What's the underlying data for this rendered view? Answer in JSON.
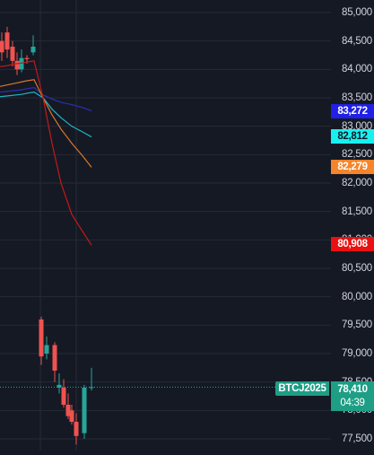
{
  "price_axis": {
    "ticks": [
      "85,000",
      "84,500",
      "84,000",
      "83,500",
      "83,000",
      "82,500",
      "82,000",
      "81,500",
      "81,000",
      "80,500",
      "80,000",
      "79,500",
      "79,000",
      "78,500",
      "78,000",
      "77,500"
    ]
  },
  "indicator_tags": [
    {
      "name": "ma-tag-blue",
      "value": "83,272",
      "bg": "#2020e6",
      "text_color": "#ffffff"
    },
    {
      "name": "ma-tag-cyan",
      "value": "82,812",
      "bg": "#18f0f0",
      "text_color": "#131722"
    },
    {
      "name": "ma-tag-orange",
      "value": "82,279",
      "bg": "#f5842a",
      "text_color": "#ffffff"
    },
    {
      "name": "ma-tag-red",
      "value": "80,908",
      "bg": "#e81010",
      "text_color": "#ffffff"
    }
  ],
  "symbol": {
    "label": "BTCJ2025",
    "color": "#1d9e85"
  },
  "last_price": {
    "value": "78,410",
    "countdown": "04:39",
    "color": "#1d9e85"
  },
  "colors": {
    "background": "#151924",
    "grid": "#252a36",
    "bull": "#26a69a",
    "bear": "#ef5350",
    "ma_blue": "#2e2eb0",
    "ma_cyan": "#1fb6c2",
    "ma_orange": "#d9772b",
    "ma_red": "#c21a1a"
  },
  "chart_data": {
    "type": "candlestick",
    "ylim": [
      77300,
      85100
    ],
    "yticks": [
      85000,
      84500,
      84000,
      83500,
      83000,
      82500,
      82000,
      81500,
      81000,
      80500,
      80000,
      79500,
      79000,
      78500,
      78000,
      77500
    ],
    "candles": [
      {
        "o": 84500,
        "h": 84650,
        "l": 84150,
        "c": 84300
      },
      {
        "o": 84650,
        "h": 84750,
        "l": 84200,
        "c": 84350
      },
      {
        "o": 84400,
        "h": 84500,
        "l": 84050,
        "c": 84150
      },
      {
        "o": 84150,
        "h": 84300,
        "l": 83900,
        "c": 84000
      },
      {
        "o": 84000,
        "h": 84350,
        "l": 83950,
        "c": 84200
      },
      {
        "o": 84200,
        "h": 84250,
        "l": 84100,
        "c": 84180
      },
      {
        "o": 84300,
        "h": 84600,
        "l": 84250,
        "c": 84400
      },
      {
        "o": 79600,
        "h": 79650,
        "l": 78800,
        "c": 78950
      },
      {
        "o": 79000,
        "h": 79300,
        "l": 78900,
        "c": 79150
      },
      {
        "o": 79150,
        "h": 79200,
        "l": 78500,
        "c": 78700
      },
      {
        "o": 78400,
        "h": 78650,
        "l": 78300,
        "c": 78450
      },
      {
        "o": 78400,
        "h": 78550,
        "l": 78050,
        "c": 78100
      },
      {
        "o": 78100,
        "h": 78300,
        "l": 77850,
        "c": 77900
      },
      {
        "o": 78000,
        "h": 78100,
        "l": 77750,
        "c": 77800
      },
      {
        "o": 77800,
        "h": 77950,
        "l": 77400,
        "c": 77550
      },
      {
        "o": 77600,
        "h": 78450,
        "l": 77500,
        "c": 78400
      },
      {
        "o": 78410,
        "h": 78750,
        "l": 78350,
        "c": 78410
      }
    ],
    "ma_lines": [
      {
        "name": "ma-blue",
        "color": "#2e2eb0",
        "values": [
          83600,
          83610,
          83620,
          83630,
          83640,
          83660,
          83680,
          83550,
          83480,
          83420,
          83380,
          83330,
          83272
        ]
      },
      {
        "name": "ma-cyan",
        "color": "#1fb6c2",
        "values": [
          83520,
          83530,
          83540,
          83550,
          83560,
          83580,
          83600,
          83500,
          83300,
          83150,
          83000,
          82900,
          82812
        ]
      },
      {
        "name": "ma-orange",
        "color": "#d9772b",
        "values": [
          83700,
          83720,
          83740,
          83760,
          83780,
          83800,
          83820,
          83500,
          83200,
          82950,
          82700,
          82480,
          82279
        ]
      },
      {
        "name": "ma-red",
        "color": "#c21a1a",
        "values": [
          84050,
          84060,
          84080,
          84100,
          84110,
          84130,
          84150,
          83500,
          82700,
          82000,
          81450,
          81150,
          80908
        ]
      }
    ]
  }
}
